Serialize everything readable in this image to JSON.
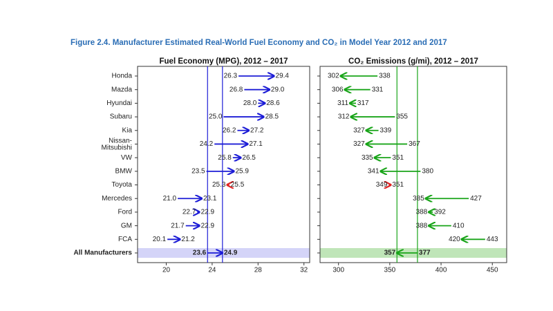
{
  "title": "Figure 2.4. Manufacturer Estimated Real-World Fuel Economy and CO₂ in Model Year 2012 and 2017",
  "chart_data": [
    {
      "type": "arrow",
      "title": "Fuel Economy (MPG), 2012 – 2017",
      "categories": [
        "Honda",
        "Mazda",
        "Hyundai",
        "Subaru",
        "Kia",
        "Nissan-Mitsubishi",
        "VW",
        "BMW",
        "Toyota",
        "Mercedes",
        "Ford",
        "GM",
        "FCA",
        "All Manufacturers"
      ],
      "start_values": [
        26.3,
        26.8,
        28.0,
        25.0,
        26.2,
        24.2,
        25.8,
        23.5,
        25.5,
        21.0,
        22.7,
        21.7,
        20.1,
        23.6
      ],
      "start_value_labels": [
        "26.3",
        "26.8",
        "28.0",
        "25.0",
        "26.2",
        "24.2",
        "25.8",
        "23.5",
        "25.5",
        "21.0",
        "22.7",
        "21.7",
        "20.1",
        "23.6"
      ],
      "end_values": [
        29.4,
        29.0,
        28.6,
        28.5,
        27.2,
        27.1,
        26.5,
        25.9,
        25.3,
        23.1,
        22.9,
        22.9,
        21.2,
        24.9
      ],
      "end_value_labels": [
        "29.4",
        "29.0",
        "28.6",
        "28.5",
        "27.2",
        "27.1",
        "26.5",
        "25.9",
        "25.3",
        "23.1",
        "22.9",
        "22.9",
        "21.2",
        "24.9"
      ],
      "better": "higher",
      "color": "#1c1cd6",
      "worse_color": "#e02424",
      "band_color": "#d4d4f8",
      "xlim": [
        17.5,
        32.5
      ],
      "xticks": [
        20,
        24,
        28,
        32
      ]
    },
    {
      "type": "arrow",
      "title": "CO₂ Emissions (g/mi), 2012 – 2017",
      "categories": [
        "Honda",
        "Mazda",
        "Hyundai",
        "Subaru",
        "Kia",
        "Nissan-Mitsubishi",
        "VW",
        "BMW",
        "Toyota",
        "Mercedes",
        "Ford",
        "GM",
        "FCA",
        "All Manufacturers"
      ],
      "start_values": [
        338,
        331,
        317,
        355,
        339,
        367,
        351,
        380,
        349,
        427,
        392,
        410,
        443,
        377
      ],
      "end_values": [
        302,
        306,
        311,
        312,
        327,
        327,
        335,
        341,
        351,
        385,
        388,
        388,
        420,
        357
      ],
      "better": "lower",
      "color": "#18a418",
      "worse_color": "#e02424",
      "band_color": "#bfe5b8",
      "xlim": [
        282,
        464
      ],
      "xticks": [
        300,
        350,
        400,
        450
      ]
    }
  ]
}
